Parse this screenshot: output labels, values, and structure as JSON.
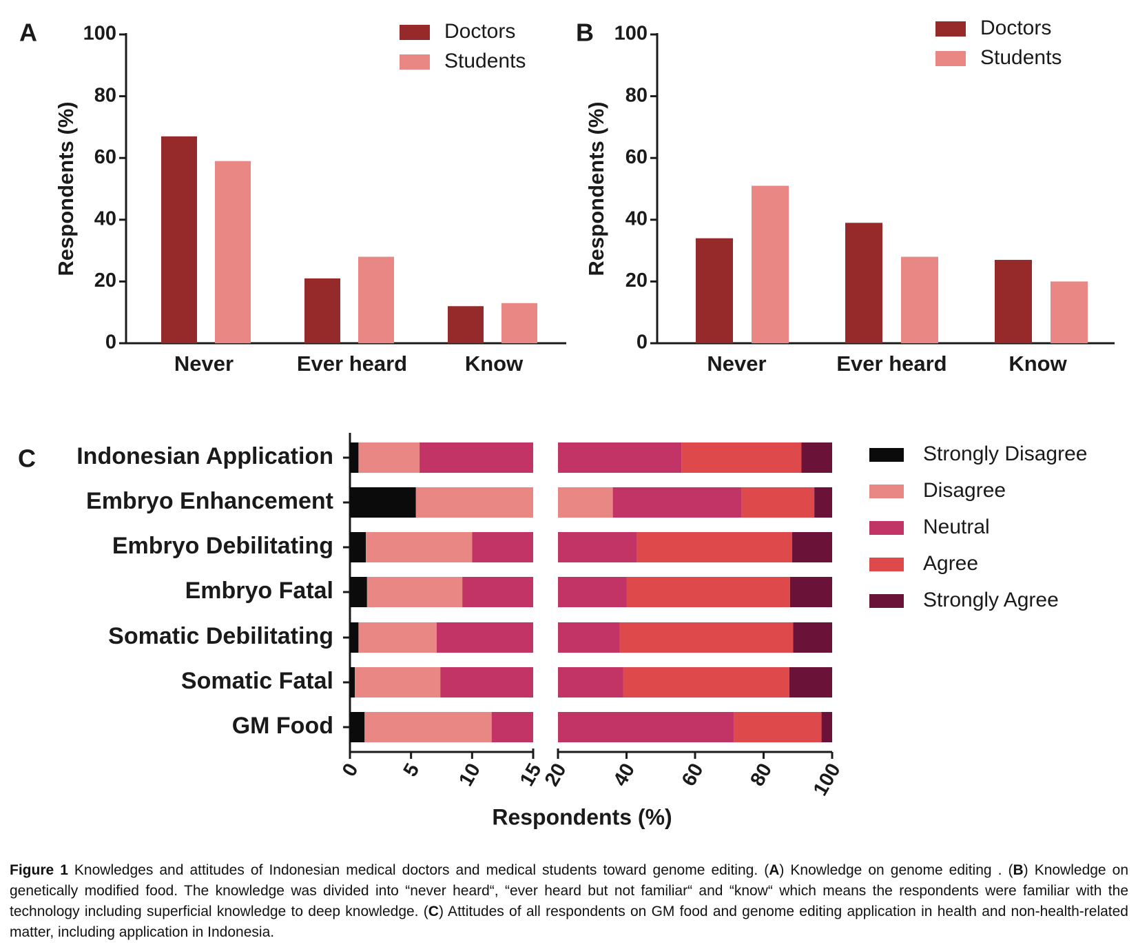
{
  "colors": {
    "doctors": "#962a2a",
    "students": "#e88783",
    "strongly_disagree": "#0b0b0b",
    "disagree": "#e88783",
    "neutral": "#c13465",
    "agree": "#de4a4c",
    "strongly_agree": "#6a1238"
  },
  "chart_data": [
    {
      "type": "bar",
      "panel": "A",
      "ylabel": "Respondents (%)",
      "ylim": [
        0,
        100
      ],
      "yticks": [
        "0",
        "20",
        "40",
        "60",
        "80",
        "100"
      ],
      "categories": [
        "Never",
        "Ever heard",
        "Know"
      ],
      "series": [
        {
          "name": "Doctors",
          "values": [
            67,
            21,
            12
          ]
        },
        {
          "name": "Students",
          "values": [
            59,
            28,
            13
          ]
        }
      ],
      "legend": "top-right"
    },
    {
      "type": "bar",
      "panel": "B",
      "ylabel": "Respondents (%)",
      "ylim": [
        0,
        100
      ],
      "yticks": [
        "0",
        "20",
        "40",
        "60",
        "80",
        "100"
      ],
      "categories": [
        "Never",
        "Ever heard",
        "Know"
      ],
      "series": [
        {
          "name": "Doctors",
          "values": [
            34,
            39,
            27
          ]
        },
        {
          "name": "Students",
          "values": [
            51,
            28,
            20
          ]
        }
      ],
      "legend": "top-right"
    },
    {
      "type": "bar",
      "orientation": "horizontal-stacked",
      "panel": "C",
      "xlabel": "Respondents (%)",
      "x_axis_break": {
        "left_range": [
          0,
          15
        ],
        "right_range": [
          20,
          100
        ]
      },
      "xticks_left": [
        "0",
        "5",
        "10",
        "15"
      ],
      "xticks_right": [
        "20",
        "40",
        "60",
        "80",
        "100"
      ],
      "categories": [
        "Indonesian Application",
        "Embryo Enhancement",
        "Embryo Debilitating",
        "Embryo Fatal",
        "Somatic Debilitating",
        "Somatic Fatal",
        "GM Food"
      ],
      "series": [
        {
          "name": "Strongly Disagree",
          "values": [
            0.7,
            5.4,
            1.3,
            1.4,
            0.7,
            0.4,
            1.2
          ]
        },
        {
          "name": "Disagree",
          "values": [
            5.0,
            30.6,
            8.7,
            7.8,
            6.4,
            7.0,
            10.4
          ]
        },
        {
          "name": "Neutral",
          "values": [
            50.3,
            37.6,
            33.0,
            30.8,
            30.9,
            31.6,
            59.8
          ]
        },
        {
          "name": "Agree",
          "values": [
            35.0,
            21.2,
            45.3,
            47.7,
            50.6,
            48.5,
            25.5
          ]
        },
        {
          "name": "Strongly Agree",
          "values": [
            9.0,
            5.2,
            11.7,
            12.3,
            11.4,
            12.5,
            3.1
          ]
        }
      ],
      "legend": "right"
    }
  ],
  "caption": {
    "label": "Figure 1",
    "text1": " Knowledges and attitudes of Indonesian medical doctors and medical students toward genome editing. (",
    "A": "A",
    "text2": ") Knowledge on genome editing . (",
    "B": "B",
    "text3": ") Knowledge on genetically modified food. The knowledge was divided into “never heard“, “ever heard but not familiar“ and “know“ which means the respondents were familiar with the technology including superficial knowledge to deep knowledge. (",
    "C": "C",
    "text4": ") Attitudes of all respondents on GM food and genome editing application in health and non-health-related matter, including application in Indonesia."
  }
}
